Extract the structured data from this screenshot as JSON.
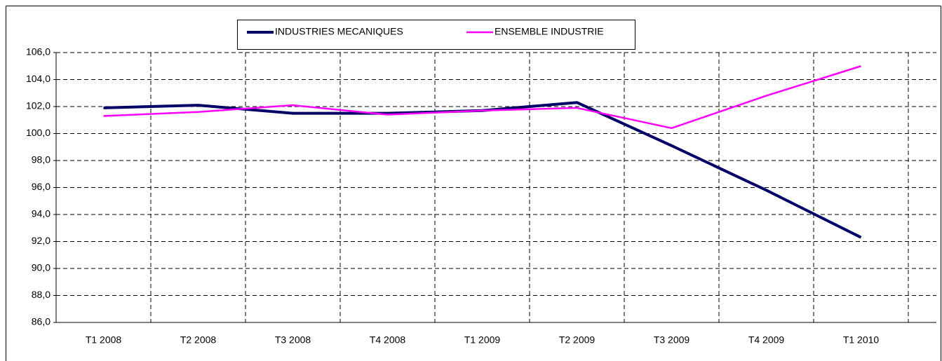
{
  "chart_data": {
    "type": "line",
    "categories": [
      "T1 2008",
      "T2 2008",
      "T3 2008",
      "T4 2008",
      "T1 2009",
      "T2 2009",
      "T3 2009",
      "T4 2009",
      "T1 2010"
    ],
    "series": [
      {
        "name": "INDUSTRIES MECANIQUES",
        "color": "#000066",
        "values": [
          101.9,
          102.1,
          101.5,
          101.5,
          101.7,
          102.3,
          99.1,
          95.8,
          92.3
        ]
      },
      {
        "name": "ENSEMBLE INDUSTRIE",
        "color": "#ff00ff",
        "values": [
          101.3,
          101.6,
          102.1,
          101.4,
          101.7,
          101.9,
          100.4,
          102.8,
          105.0
        ]
      }
    ],
    "ylim": [
      86,
      106
    ],
    "yticks": [
      {
        "value": 86,
        "label": "86,0"
      },
      {
        "value": 88,
        "label": "88,0"
      },
      {
        "value": 90,
        "label": "90,0"
      },
      {
        "value": 92,
        "label": "92,0"
      },
      {
        "value": 94,
        "label": "94,0"
      },
      {
        "value": 96,
        "label": "96,0"
      },
      {
        "value": 98,
        "label": "98,0"
      },
      {
        "value": 100,
        "label": "100,0"
      },
      {
        "value": 102,
        "label": "102,0"
      },
      {
        "value": 104,
        "label": "104,0"
      },
      {
        "value": 106,
        "label": "106,0"
      }
    ],
    "grid": true,
    "legend": "top"
  }
}
